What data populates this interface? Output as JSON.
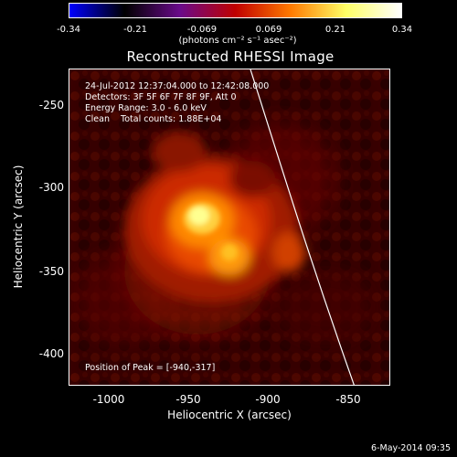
{
  "colorbar": {
    "tick_labels": [
      "-0.34",
      "-0.21",
      "-0.069",
      "0.069",
      "0.21",
      "0.34"
    ],
    "units": "(photons cm⁻² s⁻¹ asec⁻²)",
    "colors": [
      "#0000ff",
      "#000000",
      "#6a0a8a",
      "#c00000",
      "#ff7a00",
      "#ffff66",
      "#ffffff"
    ]
  },
  "title": "Reconstructed RHESSI Image",
  "info": {
    "time_range": "24-Jul-2012 12:37:04.000 to 12:42:08.000",
    "detectors": "Detectors: 3F 5F 6F 7F 8F 9F, Att 0",
    "energy": "Energy Range: 3.0 - 6.0 keV",
    "clean": "Clean    Total counts: 1.88E+04"
  },
  "peak": "Position of Peak = [-940,-317]",
  "axes": {
    "xlabel": "Heliocentric X (arcsec)",
    "ylabel": "Heliocentric Y (arcsec)",
    "x_ticks": [
      "-1000",
      "-950",
      "-900",
      "-850"
    ],
    "y_ticks": [
      "-250",
      "-300",
      "-350",
      "-400"
    ]
  },
  "date_stamp": "6-May-2014 09:35"
}
